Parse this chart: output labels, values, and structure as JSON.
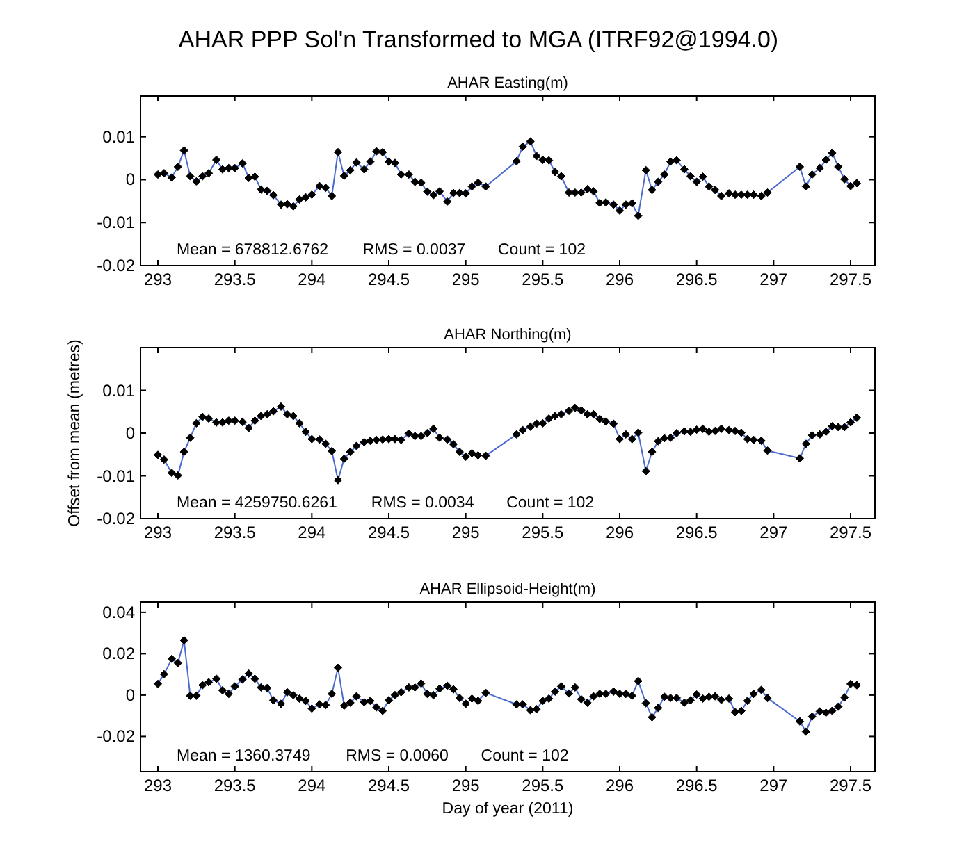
{
  "chart_data": [
    {
      "type": "line",
      "title": "AHAR  PPP Sol'n Transformed to MGA (ITRF92@1994.0)",
      "subtitle": "AHAR Easting(m)",
      "annotations": [
        "Mean = 678812.6762",
        "RMS = 0.0037",
        "Count = 102"
      ],
      "xlim": [
        292.887,
        297.658
      ],
      "xticks": [
        293,
        293.5,
        294,
        294.5,
        295,
        295.5,
        296,
        296.5,
        297,
        297.5
      ],
      "ylim": [
        -0.02,
        0.0195
      ],
      "yticks": [
        -0.02,
        -0.01,
        0,
        0.01
      ],
      "marker": "diamond",
      "line_style": "solid",
      "series": [
        {
          "color": "#4a6ad0",
          "x": [
            293.0,
            293.04,
            293.09,
            293.13,
            293.17,
            293.21,
            293.25,
            293.29,
            293.33,
            293.38,
            293.42,
            293.46,
            293.5,
            293.55,
            293.59,
            293.63,
            293.67,
            293.71,
            293.75,
            293.8,
            293.84,
            293.88,
            293.92,
            293.96,
            294.0,
            294.05,
            294.09,
            294.13,
            294.17,
            294.21,
            294.25,
            294.29,
            294.34,
            294.38,
            294.42,
            294.46,
            294.5,
            294.54,
            294.58,
            294.63,
            294.67,
            294.71,
            294.75,
            294.79,
            294.83,
            294.88,
            294.92,
            294.96,
            295.0,
            295.04,
            295.08,
            295.13,
            295.33,
            295.37,
            295.42,
            295.46,
            295.5,
            295.54,
            295.58,
            295.62,
            295.67,
            295.71,
            295.75,
            295.79,
            295.83,
            295.87,
            295.91,
            295.96,
            296.0,
            296.04,
            296.08,
            296.12,
            296.17,
            296.21,
            296.25,
            296.29,
            296.33,
            296.37,
            296.42,
            296.46,
            296.5,
            296.54,
            296.58,
            296.62,
            296.66,
            296.71,
            296.75,
            296.79,
            296.83,
            296.87,
            296.92,
            296.96,
            297.17,
            297.21,
            297.25,
            297.3,
            297.34,
            297.38,
            297.42,
            297.46,
            297.5,
            297.54
          ],
          "values": [
            0.0012,
            0.0015,
            0.0005,
            0.003,
            0.0068,
            0.0008,
            -0.0004,
            0.0008,
            0.0015,
            0.0046,
            0.0024,
            0.0027,
            0.0027,
            0.0038,
            0.0004,
            0.0007,
            -0.0023,
            -0.0026,
            -0.0036,
            -0.0058,
            -0.0057,
            -0.0062,
            -0.0046,
            -0.0041,
            -0.0035,
            -0.0015,
            -0.0019,
            -0.0038,
            0.0064,
            0.0009,
            0.0022,
            0.004,
            0.0024,
            0.0042,
            0.0066,
            0.0064,
            0.0042,
            0.0039,
            0.0012,
            0.0012,
            -0.0005,
            -0.0007,
            -0.0028,
            -0.0036,
            -0.0027,
            -0.0051,
            -0.0031,
            -0.0031,
            -0.0032,
            -0.0016,
            -0.0007,
            -0.0016,
            0.0043,
            0.0077,
            0.0089,
            0.0055,
            0.0046,
            0.0045,
            0.0018,
            0.0008,
            -0.003,
            -0.003,
            -0.003,
            -0.0022,
            -0.0027,
            -0.0054,
            -0.0053,
            -0.0058,
            -0.0072,
            -0.0058,
            -0.0055,
            -0.0084,
            0.0022,
            -0.0024,
            -0.0005,
            0.0012,
            0.0042,
            0.0045,
            0.0024,
            0.0008,
            -0.0005,
            0.0007,
            -0.0016,
            -0.0024,
            -0.0038,
            -0.0032,
            -0.0035,
            -0.0035,
            -0.0035,
            -0.0035,
            -0.0038,
            -0.003,
            0.003,
            -0.0016,
            0.0012,
            0.0027,
            0.0046,
            0.0062,
            0.003,
            0.0001,
            -0.0015,
            -0.0008
          ]
        }
      ]
    },
    {
      "type": "line",
      "title": "AHAR Northing(m)",
      "ylabel": "Offset from mean (metres)",
      "annotations": [
        "Mean = 4259750.6261",
        "RMS = 0.0034",
        "Count = 102"
      ],
      "xlim": [
        292.887,
        297.658
      ],
      "xticks": [
        293,
        293.5,
        294,
        294.5,
        295,
        295.5,
        296,
        296.5,
        297,
        297.5
      ],
      "ylim": [
        -0.02,
        0.02
      ],
      "yticks": [
        -0.02,
        -0.01,
        0,
        0.01
      ],
      "marker": "diamond",
      "line_style": "solid",
      "series": [
        {
          "color": "#4a6ad0",
          "x": [
            293.0,
            293.04,
            293.09,
            293.13,
            293.17,
            293.21,
            293.25,
            293.29,
            293.33,
            293.38,
            293.42,
            293.46,
            293.5,
            293.55,
            293.59,
            293.63,
            293.67,
            293.71,
            293.75,
            293.8,
            293.84,
            293.88,
            293.92,
            293.96,
            294.0,
            294.05,
            294.09,
            294.13,
            294.17,
            294.21,
            294.25,
            294.29,
            294.34,
            294.38,
            294.42,
            294.46,
            294.5,
            294.54,
            294.58,
            294.63,
            294.67,
            294.71,
            294.75,
            294.79,
            294.83,
            294.88,
            294.92,
            294.96,
            295.0,
            295.04,
            295.08,
            295.13,
            295.33,
            295.37,
            295.42,
            295.46,
            295.5,
            295.54,
            295.58,
            295.62,
            295.67,
            295.71,
            295.75,
            295.79,
            295.83,
            295.87,
            295.91,
            295.96,
            296.0,
            296.04,
            296.08,
            296.12,
            296.17,
            296.21,
            296.25,
            296.29,
            296.33,
            296.37,
            296.42,
            296.46,
            296.5,
            296.54,
            296.58,
            296.62,
            296.66,
            296.71,
            296.75,
            296.79,
            296.83,
            296.87,
            296.92,
            296.96,
            297.17,
            297.21,
            297.25,
            297.3,
            297.34,
            297.38,
            297.42,
            297.46,
            297.5,
            297.54
          ],
          "values": [
            -0.0051,
            -0.0062,
            -0.0093,
            -0.0099,
            -0.0044,
            -0.0011,
            0.0023,
            0.0038,
            0.0034,
            0.0025,
            0.0025,
            0.0029,
            0.0029,
            0.0026,
            0.0012,
            0.0029,
            0.004,
            0.0044,
            0.0051,
            0.0062,
            0.0044,
            0.004,
            0.0023,
            0.0003,
            -0.0014,
            -0.0015,
            -0.0025,
            -0.0042,
            -0.011,
            -0.006,
            -0.0044,
            -0.003,
            -0.0021,
            -0.0018,
            -0.0016,
            -0.0015,
            -0.0014,
            -0.0014,
            -0.0016,
            -0.0001,
            -0.0007,
            -0.0007,
            0,
            0.001,
            -0.0011,
            -0.0015,
            -0.0026,
            -0.0044,
            -0.0055,
            -0.0047,
            -0.0052,
            -0.0053,
            -0.0003,
            0.0007,
            0.0015,
            0.0022,
            0.0023,
            0.0034,
            0.004,
            0.0044,
            0.0052,
            0.0059,
            0.0053,
            0.0044,
            0.0044,
            0.0033,
            0.0027,
            0.0022,
            -0.0014,
            -0.0003,
            -0.0014,
            0.0001,
            -0.0089,
            -0.0044,
            -0.0019,
            -0.0012,
            -0.0011,
            0,
            0.0004,
            0.0003,
            0.0008,
            0.001,
            0.0003,
            0.0005,
            0.001,
            0.0007,
            0.0005,
            0.0001,
            -0.0014,
            -0.0016,
            -0.0018,
            -0.0041,
            -0.0059,
            -0.0025,
            -0.0005,
            -0.0003,
            0.0003,
            0.0016,
            0.0014,
            0.0014,
            0.0025,
            0.0036
          ]
        }
      ]
    },
    {
      "type": "line",
      "title": "AHAR Ellipsoid-Height(m)",
      "xlabel": "Day of year (2011)",
      "annotations": [
        "Mean = 1360.3749",
        "RMS = 0.0060",
        "Count = 102"
      ],
      "xlim": [
        292.887,
        297.658
      ],
      "xticks": [
        293,
        293.5,
        294,
        294.5,
        295,
        295.5,
        296,
        296.5,
        297,
        297.5
      ],
      "ylim": [
        -0.037,
        0.045
      ],
      "yticks": [
        -0.02,
        0,
        0.02,
        0.04
      ],
      "marker": "diamond",
      "line_style": "solid",
      "series": [
        {
          "color": "#4a6ad0",
          "x": [
            293.0,
            293.04,
            293.09,
            293.13,
            293.17,
            293.21,
            293.25,
            293.29,
            293.33,
            293.38,
            293.42,
            293.46,
            293.5,
            293.55,
            293.59,
            293.63,
            293.67,
            293.71,
            293.75,
            293.8,
            293.84,
            293.88,
            293.92,
            293.96,
            294.0,
            294.05,
            294.09,
            294.13,
            294.17,
            294.21,
            294.25,
            294.29,
            294.34,
            294.38,
            294.42,
            294.46,
            294.5,
            294.54,
            294.58,
            294.63,
            294.67,
            294.71,
            294.75,
            294.79,
            294.83,
            294.88,
            294.92,
            294.96,
            295.0,
            295.04,
            295.08,
            295.13,
            295.33,
            295.37,
            295.42,
            295.46,
            295.5,
            295.54,
            295.58,
            295.62,
            295.67,
            295.71,
            295.75,
            295.79,
            295.83,
            295.87,
            295.91,
            295.96,
            296.0,
            296.04,
            296.08,
            296.12,
            296.17,
            296.21,
            296.25,
            296.29,
            296.33,
            296.37,
            296.42,
            296.46,
            296.5,
            296.54,
            296.58,
            296.62,
            296.66,
            296.71,
            296.75,
            296.79,
            296.83,
            296.87,
            296.92,
            296.96,
            297.17,
            297.21,
            297.25,
            297.3,
            297.34,
            297.38,
            297.42,
            297.46,
            297.5,
            297.54
          ],
          "values": [
            0.0054,
            0.0101,
            0.0175,
            0.0155,
            0.0265,
            -0.0003,
            -0.0003,
            0.0048,
            0.0062,
            0.0079,
            0.0023,
            0.0006,
            0.0042,
            0.0076,
            0.0104,
            0.0079,
            0.0037,
            0.0034,
            -0.0025,
            -0.0042,
            0.0014,
            0,
            -0.0017,
            -0.0028,
            -0.0065,
            -0.0045,
            -0.0048,
            0.0006,
            0.0132,
            -0.0051,
            -0.0037,
            -0.0006,
            -0.0034,
            -0.0028,
            -0.0059,
            -0.0076,
            -0.0025,
            0,
            0.0014,
            0.0037,
            0.0037,
            0.0056,
            0.0006,
            0,
            0.0031,
            0.0045,
            0.0028,
            -0.0014,
            -0.0042,
            -0.0017,
            -0.0028,
            0.0011,
            -0.0045,
            -0.0045,
            -0.0073,
            -0.0068,
            -0.0028,
            -0.0017,
            0.0017,
            0.0042,
            0.0008,
            0.0037,
            -0.002,
            -0.0037,
            -0.0006,
            0.0006,
            0.0006,
            0.0017,
            0.0006,
            0.0006,
            -0.0003,
            0.0068,
            -0.0039,
            -0.0107,
            -0.0062,
            -0.0008,
            -0.0014,
            -0.0014,
            -0.0037,
            -0.0025,
            0.0003,
            -0.0017,
            -0.0008,
            -0.0006,
            -0.0023,
            -0.0017,
            -0.0082,
            -0.0076,
            -0.0028,
            0.0006,
            0.0025,
            -0.0014,
            -0.0127,
            -0.0177,
            -0.0104,
            -0.0079,
            -0.0085,
            -0.0076,
            -0.0056,
            -0.0011,
            0.0054,
            0.0048
          ]
        }
      ]
    }
  ]
}
